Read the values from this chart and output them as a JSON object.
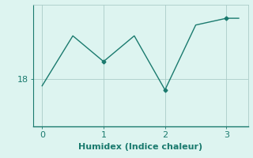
{
  "x": [
    0,
    0.5,
    1.0,
    1.5,
    2.0,
    2.5,
    3.0,
    3.2
  ],
  "y": [
    17.5,
    21.2,
    19.3,
    21.2,
    17.2,
    22.0,
    22.5,
    22.5
  ],
  "line_color": "#1a7a6e",
  "marker": "D",
  "marker_size": 2.5,
  "bg_color": "#ddf4f0",
  "grid_color": "#aaccc8",
  "xlabel": "Humidex (Indice chaleur)",
  "xlabel_fontsize": 8,
  "ytick_label": "18",
  "xlim": [
    -0.15,
    3.35
  ],
  "ylim": [
    14.5,
    23.5
  ],
  "xticks": [
    0,
    1,
    2,
    3
  ],
  "yticks": [
    18
  ]
}
